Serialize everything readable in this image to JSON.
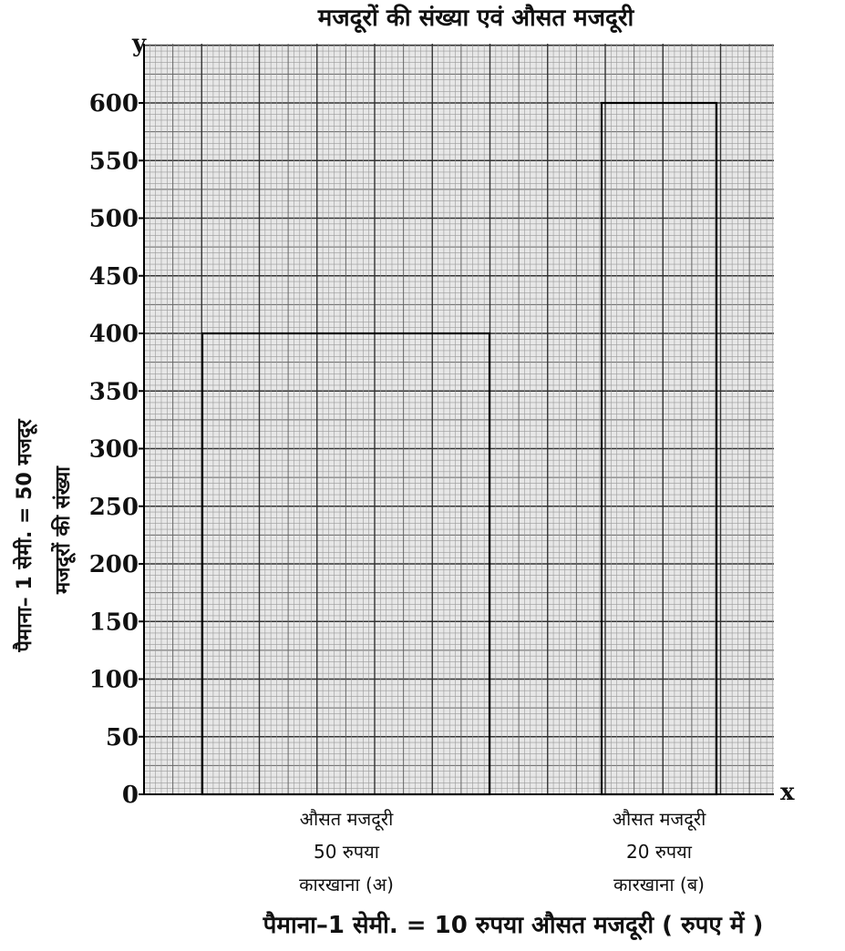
{
  "chart_data": {
    "type": "bar",
    "title": "मजदूरों की संख्या एवं औसत मजदूरी",
    "ylabel": "मजदूरों की संख्या",
    "y_scale_note": "पैमाना– 1 सेमी. = 50 मजदूर",
    "x_scale_note": "पैमाना–1 सेमी. = 10 रुपया औसत मजदूरी ( रुपए में )",
    "x_axis_letter": "x",
    "y_axis_letter": "y",
    "ylim": [
      0,
      600
    ],
    "yticks": [
      "0",
      "50",
      "100",
      "150",
      "200",
      "250",
      "300",
      "350",
      "400",
      "450",
      "500",
      "550",
      "600"
    ],
    "grid": true,
    "categories": [
      {
        "line1": "औसत मजदूरी",
        "line2": "50 रुपया",
        "line3": "कारखाना (अ)"
      },
      {
        "line1": "औसत मजदूरी",
        "line2": "20 रुपया",
        "line3": "कारखाना (ब)"
      }
    ],
    "bars": [
      {
        "factory": "कारखाना (अ)",
        "average_wage": 50,
        "workers": 400
      },
      {
        "factory": "कारखाना (ब)",
        "average_wage": 20,
        "workers": 600
      }
    ]
  }
}
